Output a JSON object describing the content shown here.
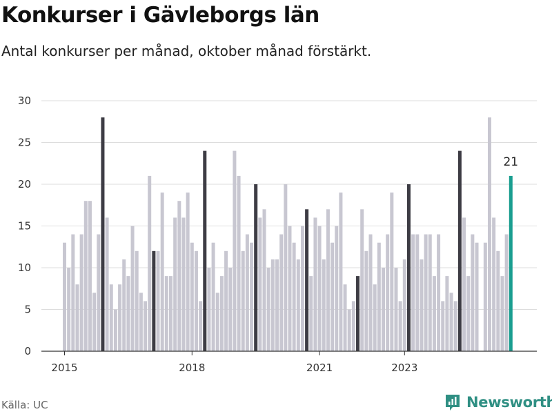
{
  "title": "Konkurser i Gävleborgs län",
  "subtitle": "Antal konkurser per månad, oktober månad förstärkt.",
  "source": "Källa: UC",
  "brand": "Newsworthy",
  "colors": {
    "bar": "#c8c7d1",
    "highlight": "#3d3c44",
    "latest": "#1a9e90",
    "grid": "#dddddd",
    "axis": "#333333",
    "brand": "#2f8f83"
  },
  "chart_data": {
    "type": "bar",
    "ylim": [
      0,
      30
    ],
    "yticks": [
      0,
      5,
      10,
      15,
      20,
      25,
      30
    ],
    "xticks": [
      {
        "label": "2015",
        "index": 0
      },
      {
        "label": "2018",
        "index": 30
      },
      {
        "label": "2021",
        "index": 60
      },
      {
        "label": "2023",
        "index": 80
      }
    ],
    "series": [
      {
        "values": [
          13,
          10,
          14,
          8,
          14,
          18,
          18,
          7,
          14,
          28,
          16,
          8,
          5,
          8,
          11,
          9,
          15,
          12,
          7,
          6,
          21,
          12,
          12,
          19,
          9,
          9,
          16,
          18,
          16,
          19,
          13,
          12,
          6,
          24,
          10,
          13,
          7,
          9,
          12,
          10,
          24,
          21,
          12,
          14,
          13,
          20,
          16,
          17,
          10,
          11,
          11,
          14,
          20,
          15,
          13,
          11,
          15,
          17,
          9,
          16,
          15,
          11,
          17,
          13,
          15,
          19,
          8,
          5,
          6,
          9,
          17,
          12,
          14,
          8,
          13,
          10,
          14,
          19,
          10,
          6,
          11,
          20,
          14,
          14,
          11,
          14,
          14,
          9,
          14,
          6,
          9,
          7,
          6,
          24,
          16,
          9,
          14,
          13,
          0,
          13,
          28,
          16,
          12,
          9,
          14,
          21
        ],
        "highlight_indices": [
          9,
          21,
          33,
          45,
          57,
          69,
          81,
          93
        ],
        "latest_index": 105,
        "latest_label": "21"
      }
    ],
    "grid": true
  }
}
